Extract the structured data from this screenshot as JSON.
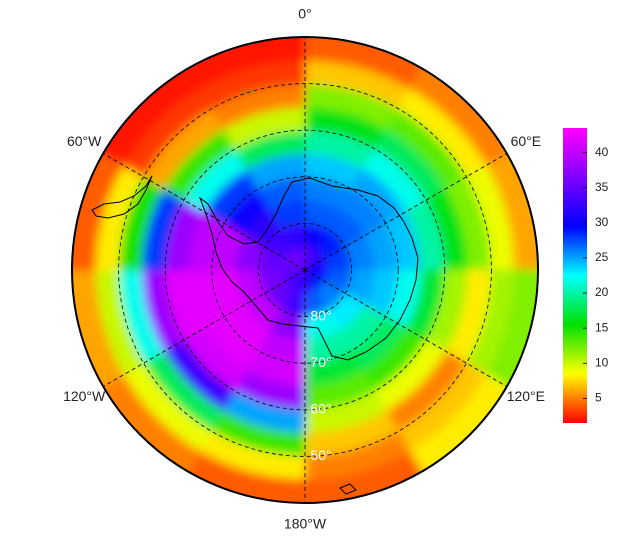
{
  "map": {
    "type": "polar-heatmap",
    "lat_edges": [
      90,
      85,
      80,
      75,
      70,
      65,
      60,
      55,
      50,
      45,
      40
    ],
    "lon_edges": [
      0,
      30,
      60,
      90,
      120,
      150,
      180,
      210,
      240,
      270,
      300,
      330,
      360
    ],
    "values": [
      [
        34,
        30,
        27,
        26,
        24,
        20,
        16,
        12,
        7,
        4
      ],
      [
        32,
        29,
        27,
        26,
        25,
        22,
        18,
        13,
        8,
        5
      ],
      [
        31,
        28,
        26,
        25,
        24,
        20,
        16,
        12,
        9,
        6
      ],
      [
        30,
        27,
        25,
        24,
        22,
        17,
        11,
        8,
        11,
        12
      ],
      [
        29,
        26,
        23,
        20,
        18,
        14,
        9,
        5,
        7,
        8
      ],
      [
        30,
        27,
        22,
        20,
        17,
        13,
        10,
        7,
        5,
        4
      ],
      [
        33,
        33,
        37,
        40,
        41,
        38,
        25,
        14,
        8,
        4
      ],
      [
        33,
        35,
        40,
        42,
        42,
        41,
        33,
        18,
        9,
        5
      ],
      [
        34,
        36,
        40,
        42,
        42,
        42,
        38,
        22,
        10,
        6
      ],
      [
        35,
        35,
        37,
        40,
        40,
        38,
        28,
        15,
        8,
        4
      ],
      [
        36,
        33,
        32,
        30,
        28,
        22,
        14,
        6,
        3,
        2
      ],
      [
        35,
        32,
        28,
        27,
        25,
        18,
        10,
        5,
        3,
        2
      ]
    ],
    "lat_circles": [
      {
        "value": 80,
        "label": "80°"
      },
      {
        "value": 70,
        "label": "70°"
      },
      {
        "value": 60,
        "label": "60°"
      },
      {
        "value": 50,
        "label": "50°"
      }
    ],
    "lon_lines": [
      {
        "value": 0,
        "label": "0°"
      },
      {
        "value": 60,
        "label": "60°E"
      },
      {
        "value": 120,
        "label": "120°E"
      },
      {
        "value": 180,
        "label": "180°W"
      },
      {
        "value": -120,
        "label": "120°W"
      },
      {
        "value": -60,
        "label": "60°W"
      }
    ],
    "clim": [
      1.5,
      43.5
    ],
    "cticks": [
      5,
      10,
      15,
      20,
      25,
      30,
      35,
      40
    ],
    "colormap": [
      "#ff0000",
      "#ffff00",
      "#00e000",
      "#00ffff",
      "#0000ff",
      "#8000ff",
      "#ff00ff"
    ]
  }
}
